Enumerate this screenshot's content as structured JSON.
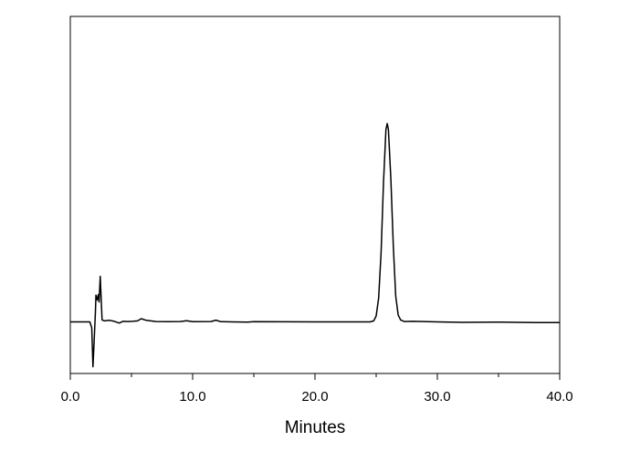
{
  "chart_data": {
    "type": "line",
    "title": "",
    "xlabel": "Minutes",
    "ylabel": "",
    "xlim": [
      0,
      40
    ],
    "ylim": [
      -26,
      154
    ],
    "y_axis_ticks_shown": false,
    "grid": false,
    "line_color": "#000000",
    "x_ticks": [
      "0.0",
      "10.0",
      "20.0",
      "30.0",
      "40.0"
    ],
    "x_tick_values": [
      0,
      10,
      20,
      30,
      40
    ],
    "x_minor_tick_values": [
      5,
      15,
      25,
      35
    ],
    "series": [
      {
        "points": [
          [
            0.0,
            0
          ],
          [
            1.6,
            0
          ],
          [
            1.75,
            -3
          ],
          [
            1.85,
            -22.6
          ],
          [
            1.95,
            -10
          ],
          [
            2.05,
            5
          ],
          [
            2.1,
            13.5
          ],
          [
            2.2,
            11
          ],
          [
            2.3,
            13.8
          ],
          [
            2.35,
            10
          ],
          [
            2.45,
            23
          ],
          [
            2.5,
            15
          ],
          [
            2.6,
            1
          ],
          [
            2.8,
            0.5
          ],
          [
            3.2,
            0.8
          ],
          [
            3.6,
            0.3
          ],
          [
            4.0,
            -0.6
          ],
          [
            4.3,
            0.3
          ],
          [
            4.7,
            0.2
          ],
          [
            5.1,
            0.3
          ],
          [
            5.5,
            0.5
          ],
          [
            5.8,
            1.6
          ],
          [
            6.2,
            0.8
          ],
          [
            7.0,
            0.2
          ],
          [
            8.0,
            0.1
          ],
          [
            9.0,
            0.2
          ],
          [
            9.5,
            0.6
          ],
          [
            10.0,
            0.1
          ],
          [
            11.5,
            0.2
          ],
          [
            11.9,
            0.9
          ],
          [
            12.3,
            0.1
          ],
          [
            14.5,
            -0.1
          ],
          [
            15.0,
            0.1
          ],
          [
            20.0,
            0
          ],
          [
            24.5,
            0
          ],
          [
            24.8,
            0.5
          ],
          [
            25.0,
            3
          ],
          [
            25.2,
            12
          ],
          [
            25.4,
            35
          ],
          [
            25.6,
            70
          ],
          [
            25.8,
            97
          ],
          [
            25.9,
            100
          ],
          [
            26.0,
            97
          ],
          [
            26.2,
            72
          ],
          [
            26.4,
            38
          ],
          [
            26.6,
            13
          ],
          [
            26.8,
            3.5
          ],
          [
            27.0,
            1
          ],
          [
            27.3,
            0.2
          ],
          [
            28.0,
            0.3
          ],
          [
            30.0,
            0
          ],
          [
            32.0,
            -0.2
          ],
          [
            35.0,
            -0.1
          ],
          [
            38.0,
            -0.3
          ],
          [
            40.0,
            -0.3
          ]
        ]
      }
    ]
  }
}
